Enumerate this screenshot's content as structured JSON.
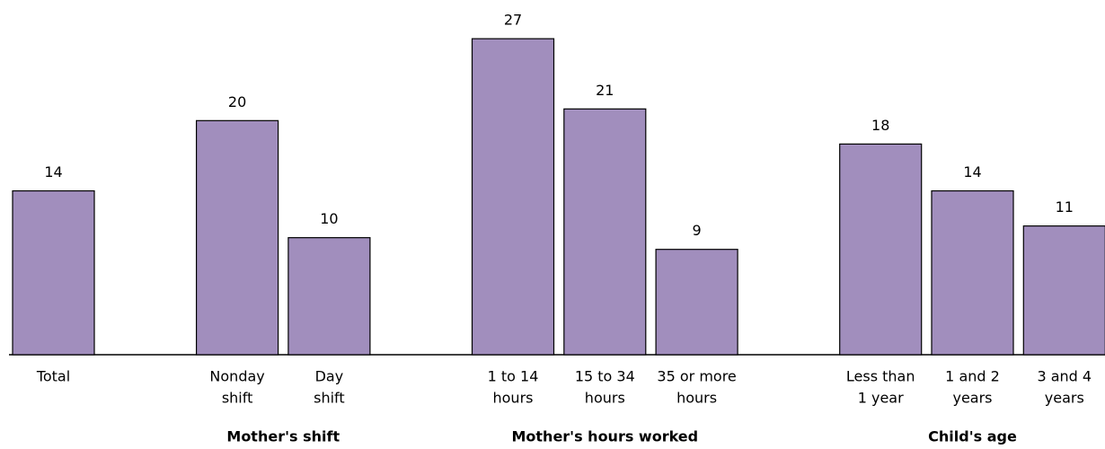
{
  "chart_data": {
    "type": "bar",
    "color": "#a18ebd",
    "ylim": [
      0,
      30
    ],
    "groups": [
      {
        "categories": [
          [
            "Total"
          ]
        ],
        "values": [
          14
        ]
      },
      {
        "name": "Mother's shift",
        "categories": [
          [
            "Nonday",
            "shift"
          ],
          [
            "Day",
            "shift"
          ]
        ],
        "values": [
          20,
          10
        ]
      },
      {
        "name": "Mother's hours worked",
        "categories": [
          [
            "1 to 14",
            "hours"
          ],
          [
            "15 to 34",
            "hours"
          ],
          [
            "35 or more",
            "hours"
          ]
        ],
        "values": [
          27,
          21,
          9
        ]
      },
      {
        "name": "Child's age",
        "categories": [
          [
            "Less than",
            "1 year"
          ],
          [
            "1 and 2",
            "years"
          ],
          [
            "3 and 4",
            "years"
          ]
        ],
        "values": [
          18,
          14,
          11
        ]
      }
    ]
  }
}
